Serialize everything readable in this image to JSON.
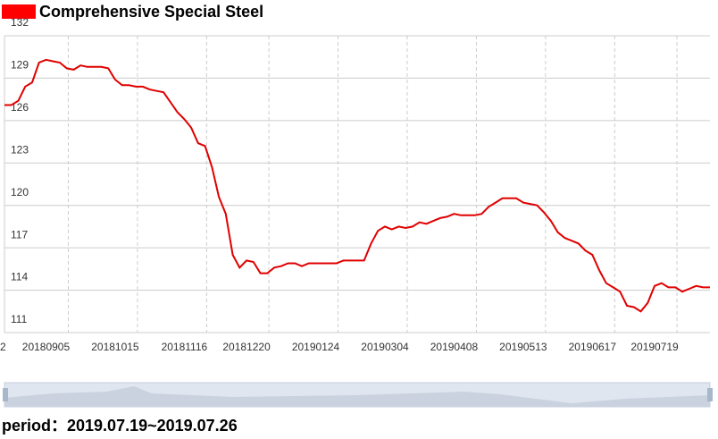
{
  "chart_data": {
    "type": "line",
    "title": "Comprehensive Special Steel",
    "categories": [
      "2",
      null,
      null,
      null,
      null,
      null,
      "20180905",
      null,
      null,
      null,
      null,
      null,
      null,
      null,
      null,
      null,
      "20181015",
      null,
      null,
      null,
      null,
      null,
      null,
      null,
      null,
      null,
      "20181116",
      null,
      null,
      null,
      null,
      null,
      null,
      null,
      null,
      "20181220",
      null,
      null,
      null,
      null,
      null,
      null,
      null,
      null,
      null,
      "20190124",
      null,
      null,
      null,
      null,
      null,
      null,
      null,
      null,
      null,
      "20190304",
      null,
      null,
      null,
      null,
      null,
      null,
      null,
      null,
      null,
      "20190408",
      null,
      null,
      null,
      null,
      null,
      null,
      null,
      null,
      null,
      "20190513",
      null,
      null,
      null,
      null,
      null,
      null,
      null,
      null,
      null,
      "20190617",
      null,
      null,
      null,
      null,
      null,
      null,
      null,
      null,
      "20190719",
      null,
      null,
      null,
      null,
      null,
      null,
      null,
      null
    ],
    "series": [
      {
        "name": "Comprehensive Special Steel",
        "color": "#e00000",
        "values": [
          127.1,
          127.1,
          127.4,
          128.4,
          128.7,
          130.1,
          130.3,
          130.2,
          130.1,
          129.7,
          129.6,
          129.9,
          129.8,
          129.8,
          129.8,
          129.7,
          128.9,
          128.5,
          128.5,
          128.4,
          128.4,
          128.2,
          128.1,
          128.0,
          127.3,
          126.6,
          126.1,
          125.5,
          124.4,
          124.2,
          122.7,
          120.6,
          119.4,
          116.5,
          115.6,
          116.1,
          116.0,
          115.2,
          115.2,
          115.6,
          115.7,
          115.9,
          115.9,
          115.7,
          115.9,
          115.9,
          115.9,
          115.9,
          115.9,
          116.1,
          116.1,
          116.1,
          116.1,
          117.3,
          118.2,
          118.5,
          118.3,
          118.5,
          118.4,
          118.5,
          118.8,
          118.7,
          118.9,
          119.1,
          119.2,
          119.4,
          119.3,
          119.3,
          119.3,
          119.4,
          119.9,
          120.2,
          120.5,
          120.5,
          120.5,
          120.2,
          120.1,
          120.0,
          119.5,
          118.9,
          118.1,
          117.7,
          117.5,
          117.3,
          116.8,
          116.5,
          115.4,
          114.5,
          114.2,
          113.9,
          112.9,
          112.8,
          112.5,
          113.1,
          114.3,
          114.5,
          114.2,
          114.2,
          113.9,
          114.1,
          114.3,
          114.2,
          114.2
        ]
      }
    ],
    "ylim": [
      111,
      132
    ],
    "yticks": [
      111,
      114,
      117,
      120,
      123,
      126,
      129,
      132
    ],
    "grid": true
  },
  "footer": {
    "label": "period：",
    "value": "2019.07.19~2019.07.26"
  }
}
